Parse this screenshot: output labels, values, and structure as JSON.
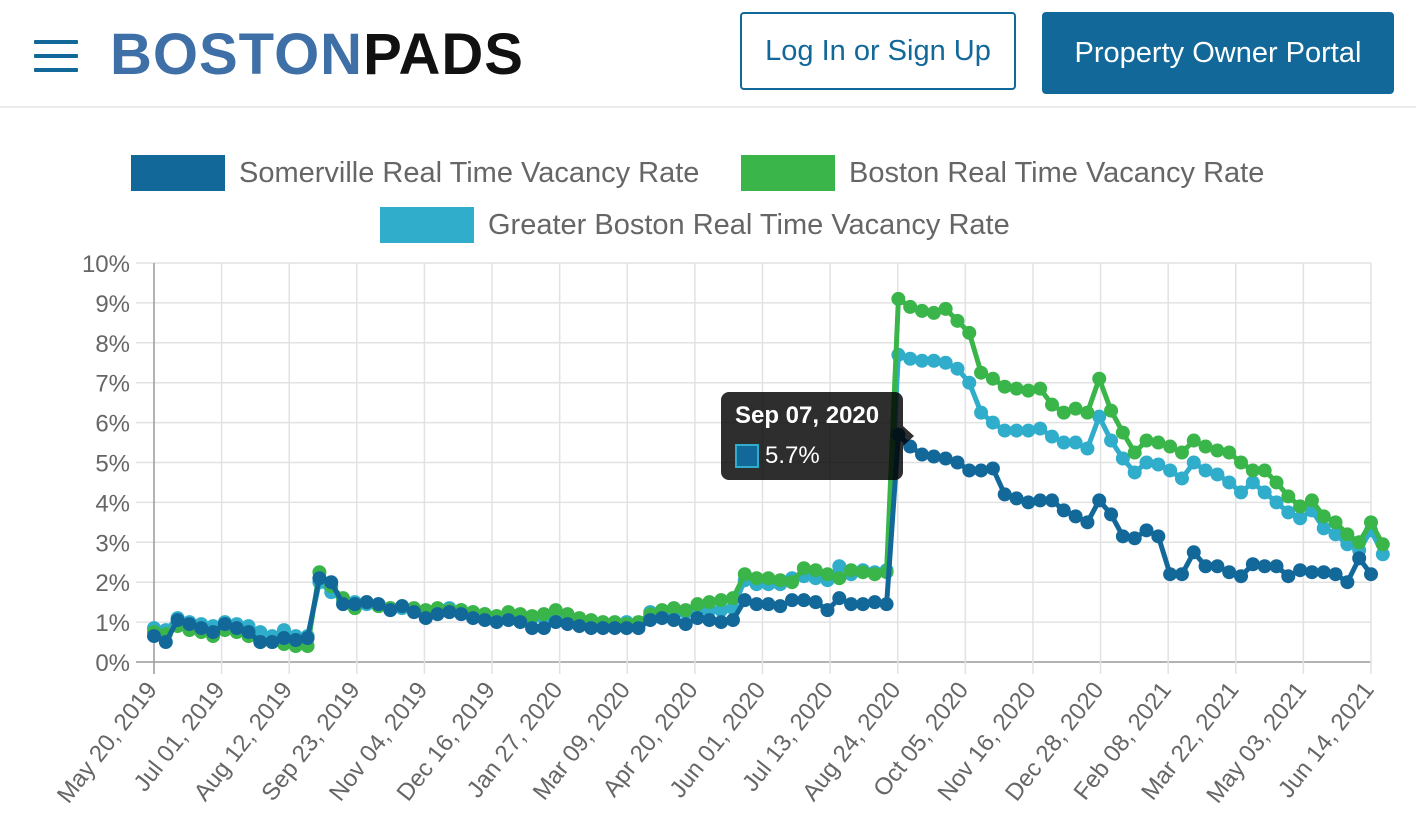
{
  "header": {
    "logo_part1": "BOSTON",
    "logo_part2": "PADS",
    "login_label": "Log In or Sign Up",
    "portal_label": "Property Owner Portal",
    "brand_color": "#13689a"
  },
  "tooltip": {
    "date": "Sep 07, 2020",
    "value": "5.7%"
  },
  "chart_data": {
    "type": "line",
    "title": "",
    "xlabel": "",
    "ylabel": "",
    "ylim": [
      0,
      10
    ],
    "y_ticks": [
      "0%",
      "1%",
      "2%",
      "3%",
      "4%",
      "5%",
      "6%",
      "7%",
      "8%",
      "9%",
      "10%"
    ],
    "x_tick_labels": [
      "May 20, 2019",
      "Jul 01, 2019",
      "Aug 12, 2019",
      "Sep 23, 2019",
      "Nov 04, 2019",
      "Dec 16, 2019",
      "Jan 27, 2020",
      "Mar 09, 2020",
      "Apr 20, 2020",
      "Jun 01, 2020",
      "Jul 13, 2020",
      "Aug 24, 2020",
      "Oct 05, 2020",
      "Nov 16, 2020",
      "Dec 28, 2020",
      "Feb 08, 2021",
      "Mar 22, 2021",
      "May 03, 2021",
      "Jun 14, 2021"
    ],
    "grid": true,
    "legend_position": "top",
    "point_interval": "weekly",
    "series": [
      {
        "name": "Somerville Real Time Vacancy Rate",
        "color": "#13689a",
        "values": [
          0.65,
          0.5,
          1.05,
          0.95,
          0.85,
          0.75,
          0.95,
          0.85,
          0.75,
          0.5,
          0.5,
          0.6,
          0.55,
          0.6,
          2.1,
          2.0,
          1.45,
          1.45,
          1.5,
          1.45,
          1.3,
          1.4,
          1.25,
          1.1,
          1.2,
          1.25,
          1.2,
          1.1,
          1.05,
          1.0,
          1.05,
          1.0,
          0.85,
          0.85,
          1.0,
          0.95,
          0.9,
          0.85,
          0.85,
          0.85,
          0.85,
          0.85,
          1.05,
          1.1,
          1.05,
          0.95,
          1.1,
          1.05,
          1.0,
          1.05,
          1.55,
          1.45,
          1.45,
          1.4,
          1.55,
          1.55,
          1.5,
          1.3,
          1.6,
          1.45,
          1.45,
          1.5,
          1.45,
          5.7,
          5.4,
          5.2,
          5.15,
          5.1,
          5.0,
          4.8,
          4.8,
          4.85,
          4.2,
          4.1,
          4.0,
          4.05,
          4.05,
          3.8,
          3.65,
          3.5,
          4.05,
          3.7,
          3.15,
          3.1,
          3.3,
          3.15,
          2.2,
          2.2,
          2.75,
          2.4,
          2.4,
          2.25,
          2.15,
          2.45,
          2.4,
          2.4,
          2.15,
          2.3,
          2.25,
          2.25,
          2.2,
          2.0,
          2.6,
          2.2
        ]
      },
      {
        "name": "Boston Real Time Vacancy Rate",
        "color": "#39b54a",
        "values": [
          0.75,
          0.7,
          0.9,
          0.8,
          0.75,
          0.65,
          0.8,
          0.75,
          0.65,
          0.5,
          0.5,
          0.45,
          0.4,
          0.4,
          2.25,
          1.9,
          1.6,
          1.35,
          1.5,
          1.4,
          1.35,
          1.4,
          1.35,
          1.3,
          1.35,
          1.3,
          1.3,
          1.25,
          1.2,
          1.15,
          1.25,
          1.2,
          1.15,
          1.2,
          1.3,
          1.2,
          1.1,
          1.05,
          1.0,
          1.0,
          0.95,
          1.0,
          1.2,
          1.3,
          1.35,
          1.3,
          1.45,
          1.5,
          1.55,
          1.6,
          2.2,
          2.1,
          2.1,
          2.05,
          2.0,
          2.35,
          2.3,
          2.2,
          2.1,
          2.3,
          2.25,
          2.2,
          2.25,
          9.1,
          8.9,
          8.8,
          8.75,
          8.85,
          8.55,
          8.25,
          7.25,
          7.1,
          6.9,
          6.85,
          6.8,
          6.85,
          6.45,
          6.25,
          6.35,
          6.25,
          7.1,
          6.3,
          5.75,
          5.25,
          5.55,
          5.5,
          5.4,
          5.25,
          5.55,
          5.4,
          5.3,
          5.25,
          5.0,
          4.8,
          4.8,
          4.5,
          4.15,
          3.9,
          4.05,
          3.65,
          3.5,
          3.2,
          3.0,
          3.5,
          2.95
        ]
      },
      {
        "name": "Greater Boston Real Time Vacancy Rate",
        "color": "#2fadcb",
        "values": [
          0.85,
          0.8,
          1.1,
          1.0,
          0.95,
          0.9,
          1.0,
          0.95,
          0.9,
          0.75,
          0.65,
          0.8,
          0.65,
          0.65,
          2.0,
          1.75,
          1.55,
          1.5,
          1.45,
          1.45,
          1.35,
          1.35,
          1.3,
          1.25,
          1.3,
          1.35,
          1.3,
          1.25,
          1.2,
          1.15,
          1.2,
          1.15,
          1.1,
          1.1,
          1.1,
          1.05,
          1.0,
          1.0,
          0.95,
          0.95,
          1.0,
          0.95,
          1.25,
          1.25,
          1.2,
          1.25,
          1.3,
          1.3,
          1.3,
          1.35,
          2.05,
          1.95,
          1.95,
          1.95,
          2.1,
          2.15,
          2.1,
          2.05,
          2.4,
          2.2,
          2.3,
          2.25,
          2.3,
          7.7,
          7.6,
          7.55,
          7.55,
          7.5,
          7.35,
          7.0,
          6.25,
          6.0,
          5.8,
          5.8,
          5.8,
          5.85,
          5.65,
          5.5,
          5.5,
          5.35,
          6.15,
          5.55,
          5.1,
          4.75,
          5.0,
          4.95,
          4.8,
          4.6,
          5.0,
          4.8,
          4.7,
          4.5,
          4.25,
          4.5,
          4.25,
          4.0,
          3.75,
          3.6,
          3.8,
          3.35,
          3.2,
          2.95,
          2.8,
          3.3,
          2.7
        ]
      }
    ]
  }
}
